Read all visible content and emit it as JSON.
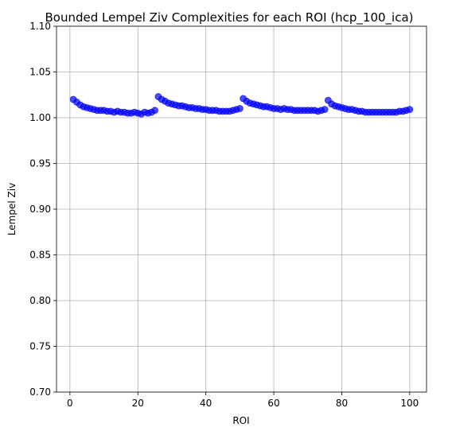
{
  "chart_data": {
    "type": "scatter",
    "title": "Bounded Lempel Ziv Complexities for each ROI (hcp_100_ica)",
    "xlabel": "ROI",
    "ylabel": "Lempel Ziv",
    "xlim": [
      -3.95,
      104.95
    ],
    "ylim": [
      0.7,
      1.1
    ],
    "xticks": [
      0,
      20,
      40,
      60,
      80,
      100
    ],
    "yticks": [
      0.7,
      0.75,
      0.8,
      0.85,
      0.9,
      0.95,
      1.0,
      1.05,
      1.1
    ],
    "grid": true,
    "marker_color": "#0000ff",
    "x": [
      1,
      2,
      3,
      4,
      5,
      6,
      7,
      8,
      9,
      10,
      11,
      12,
      13,
      14,
      15,
      16,
      17,
      18,
      19,
      20,
      21,
      22,
      23,
      24,
      25,
      26,
      27,
      28,
      29,
      30,
      31,
      32,
      33,
      34,
      35,
      36,
      37,
      38,
      39,
      40,
      41,
      42,
      43,
      44,
      45,
      46,
      47,
      48,
      49,
      50,
      51,
      52,
      53,
      54,
      55,
      56,
      57,
      58,
      59,
      60,
      61,
      62,
      63,
      64,
      65,
      66,
      67,
      68,
      69,
      70,
      71,
      72,
      73,
      74,
      75,
      76,
      77,
      78,
      79,
      80,
      81,
      82,
      83,
      84,
      85,
      86,
      87,
      88,
      89,
      90,
      91,
      92,
      93,
      94,
      95,
      96,
      97,
      98,
      99,
      100
    ],
    "y": [
      1.02,
      1.017,
      1.014,
      1.012,
      1.011,
      1.01,
      1.009,
      1.008,
      1.008,
      1.008,
      1.007,
      1.007,
      1.006,
      1.007,
      1.006,
      1.006,
      1.005,
      1.005,
      1.006,
      1.005,
      1.004,
      1.006,
      1.005,
      1.006,
      1.008,
      1.023,
      1.02,
      1.018,
      1.016,
      1.015,
      1.014,
      1.013,
      1.013,
      1.012,
      1.011,
      1.011,
      1.01,
      1.01,
      1.009,
      1.009,
      1.008,
      1.008,
      1.008,
      1.007,
      1.007,
      1.007,
      1.007,
      1.008,
      1.009,
      1.01,
      1.021,
      1.018,
      1.016,
      1.015,
      1.014,
      1.013,
      1.012,
      1.012,
      1.011,
      1.01,
      1.01,
      1.009,
      1.01,
      1.009,
      1.009,
      1.008,
      1.008,
      1.008,
      1.008,
      1.008,
      1.008,
      1.008,
      1.007,
      1.008,
      1.009,
      1.019,
      1.015,
      1.013,
      1.012,
      1.011,
      1.01,
      1.009,
      1.009,
      1.008,
      1.007,
      1.007,
      1.006,
      1.006,
      1.006,
      1.006,
      1.006,
      1.006,
      1.006,
      1.006,
      1.006,
      1.006,
      1.007,
      1.007,
      1.008,
      1.009
    ]
  }
}
